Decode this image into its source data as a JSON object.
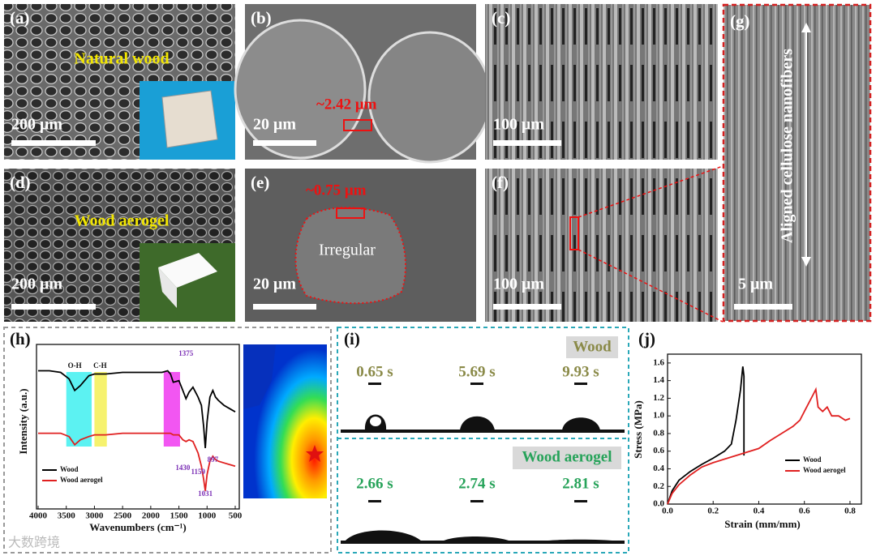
{
  "panels": [
    {
      "label": "(a)",
      "scale_bar": "200 μm",
      "annotation": "Natural wood"
    },
    {
      "label": "(b)",
      "scale_bar": "20 μm",
      "annotation": "~2.42 μm"
    },
    {
      "label": "(c)",
      "scale_bar": "100 μm"
    },
    {
      "label": "(d)",
      "scale_bar": "200 μm",
      "annotation": "Wood aerogel"
    },
    {
      "label": "(e)",
      "scale_bar": "20 μm",
      "annotation": "~0.75 μm",
      "note": "Irregular"
    },
    {
      "label": "(f)",
      "scale_bar": "100 μm"
    },
    {
      "label": "(g)",
      "scale_bar": "5 μm",
      "annotation": "Aligned cellulose nanofibers"
    }
  ],
  "contact_angle": {
    "label": "(i)",
    "groups": [
      {
        "title": "Wood",
        "times": [
          "0.65 s",
          "5.69 s",
          "9.93 s"
        ]
      },
      {
        "title": "Wood aerogel",
        "times": [
          "2.66 s",
          "2.74 s",
          "2.81 s"
        ]
      }
    ]
  },
  "watermark": "大数跨境",
  "chart_data": [
    {
      "type": "line",
      "panel_label": "(h)",
      "x_label": "Wavenumbers (cm⁻¹)",
      "y_label": "Intensity (a.u.)",
      "x": [
        4000,
        3800,
        3600,
        3450,
        3350,
        3250,
        3100,
        3000,
        2900,
        2800,
        2500,
        2200,
        2000,
        1800,
        1700,
        1650,
        1600,
        1500,
        1430,
        1375,
        1320,
        1250,
        1159,
        1100,
        1060,
        1031,
        1000,
        950,
        897,
        850,
        800,
        700,
        600,
        500
      ],
      "xlim": [
        4000,
        500
      ],
      "xticks": [
        4000,
        3500,
        3000,
        2500,
        2000,
        1500,
        1000,
        500
      ],
      "ylim": [
        0,
        1
      ],
      "series": [
        {
          "name": "Wood",
          "color": "#000000",
          "values": [
            0.84,
            0.84,
            0.83,
            0.79,
            0.72,
            0.75,
            0.81,
            0.82,
            0.82,
            0.82,
            0.83,
            0.83,
            0.83,
            0.83,
            0.84,
            0.82,
            0.77,
            0.78,
            0.72,
            0.67,
            0.71,
            0.74,
            0.68,
            0.63,
            0.5,
            0.37,
            0.53,
            0.68,
            0.72,
            0.68,
            0.66,
            0.63,
            0.61,
            0.59
          ]
        },
        {
          "name": "Wood aerogel",
          "color": "#e02020",
          "values": [
            0.46,
            0.46,
            0.46,
            0.44,
            0.39,
            0.42,
            0.44,
            0.45,
            0.45,
            0.45,
            0.46,
            0.46,
            0.46,
            0.46,
            0.46,
            0.46,
            0.45,
            0.45,
            0.42,
            0.41,
            0.42,
            0.41,
            0.34,
            0.26,
            0.18,
            0.11,
            0.21,
            0.29,
            0.32,
            0.3,
            0.29,
            0.28,
            0.27,
            0.26
          ]
        }
      ],
      "bands": [
        {
          "from": 3500,
          "to": 3050,
          "color": "#3ff0f0"
        },
        {
          "from": 3000,
          "to": 2780,
          "color": "#f5f055"
        },
        {
          "from": 1770,
          "to": 1480,
          "color": "#f038f0"
        }
      ],
      "annotations": [
        {
          "text": "O-H",
          "x": 3350
        },
        {
          "text": "C-H",
          "x": 2900
        },
        {
          "text": "1375",
          "x": 1375
        },
        {
          "text": "1430",
          "x": 1430
        },
        {
          "text": "1159",
          "x": 1159
        },
        {
          "text": "897",
          "x": 897
        },
        {
          "text": "1031",
          "x": 1031
        }
      ],
      "legend": "lower left"
    },
    {
      "type": "line",
      "panel_label": "(j)",
      "x_label": "Strain (mm/mm)",
      "y_label": "Stress (MPa)",
      "xlim": [
        0,
        0.85
      ],
      "xticks": [
        {
          "value": 0,
          "label": "0.0"
        },
        0.2,
        0.4,
        0.6,
        0.8
      ],
      "ylim": [
        0,
        1.7
      ],
      "yticks": [
        {
          "value": 0,
          "label": "0.0"
        },
        0.2,
        0.4,
        0.6,
        0.8,
        {
          "value": 1,
          "label": "1.0"
        },
        1.2,
        1.4,
        1.6
      ],
      "series": [
        {
          "name": "Wood",
          "color": "#000000",
          "x": [
            0,
            0.02,
            0.05,
            0.1,
            0.15,
            0.2,
            0.25,
            0.28,
            0.3,
            0.32,
            0.33,
            0.335,
            0.335
          ],
          "values": [
            0,
            0.15,
            0.27,
            0.37,
            0.45,
            0.52,
            0.6,
            0.68,
            0.95,
            1.3,
            1.56,
            1.45,
            0.55
          ]
        },
        {
          "name": "Wood aerogel",
          "color": "#e02020",
          "x": [
            0,
            0.02,
            0.05,
            0.1,
            0.15,
            0.2,
            0.3,
            0.4,
            0.45,
            0.5,
            0.55,
            0.58,
            0.6,
            0.62,
            0.64,
            0.65,
            0.66,
            0.68,
            0.7,
            0.72,
            0.75,
            0.78,
            0.8
          ],
          "values": [
            0,
            0.12,
            0.22,
            0.33,
            0.42,
            0.47,
            0.55,
            0.63,
            0.72,
            0.8,
            0.88,
            0.95,
            1.05,
            1.15,
            1.25,
            1.3,
            1.1,
            1.05,
            1.1,
            1,
            1,
            0.95,
            0.97
          ]
        }
      ],
      "legend": "lower right"
    }
  ]
}
